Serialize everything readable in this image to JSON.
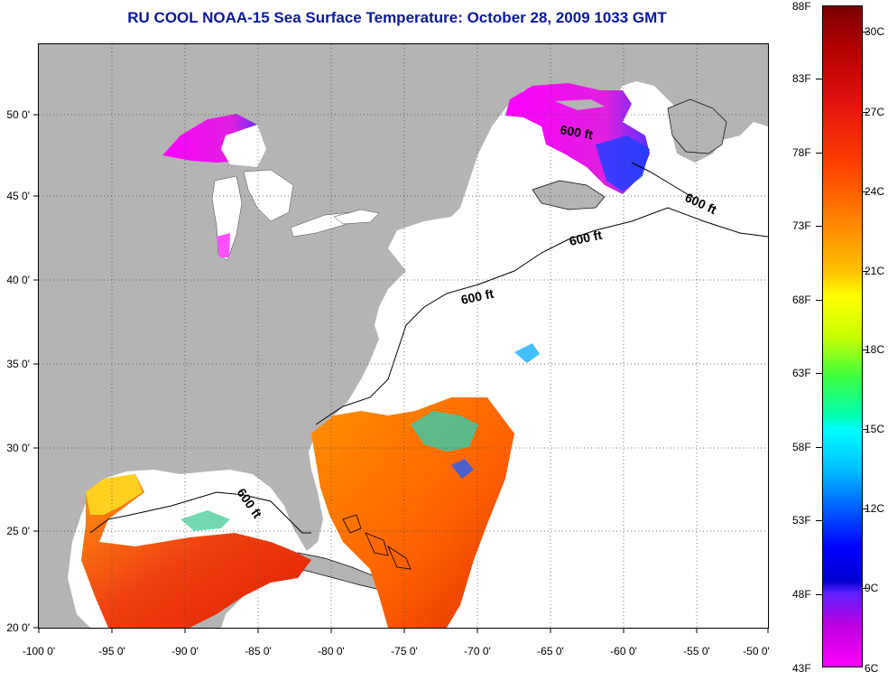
{
  "title": "RU COOL  NOAA-15  Sea Surface Temperature:  October 28, 2009 1033 GMT",
  "map": {
    "lon_ticks": [
      "-100 0'",
      "-95 0'",
      "-90 0'",
      "-85 0'",
      "-80 0'",
      "-75 0'",
      "-70 0'",
      "-65 0'",
      "-60 0'",
      "-55 0'",
      "-50 0'"
    ],
    "lat_ticks": [
      "50 0'",
      "45 0'",
      "40 0'",
      "35 0'",
      "30 0'",
      "25 0'",
      "20 0'"
    ],
    "contour_labels": [
      "600 ft",
      "600 ft",
      "600 ft",
      "600 ft",
      "600 ft"
    ],
    "colors": {
      "land": "#b4b4b4",
      "ocean_nodata": "#ffffff",
      "border": "#000000"
    }
  },
  "colorbar": {
    "fahrenheit": [
      "88F",
      "83F",
      "78F",
      "73F",
      "68F",
      "63F",
      "58F",
      "53F",
      "48F",
      "43F"
    ],
    "celsius": [
      "30C",
      "27C",
      "24C",
      "21C",
      "18C",
      "15C",
      "12C",
      "9C",
      "6C"
    ]
  }
}
